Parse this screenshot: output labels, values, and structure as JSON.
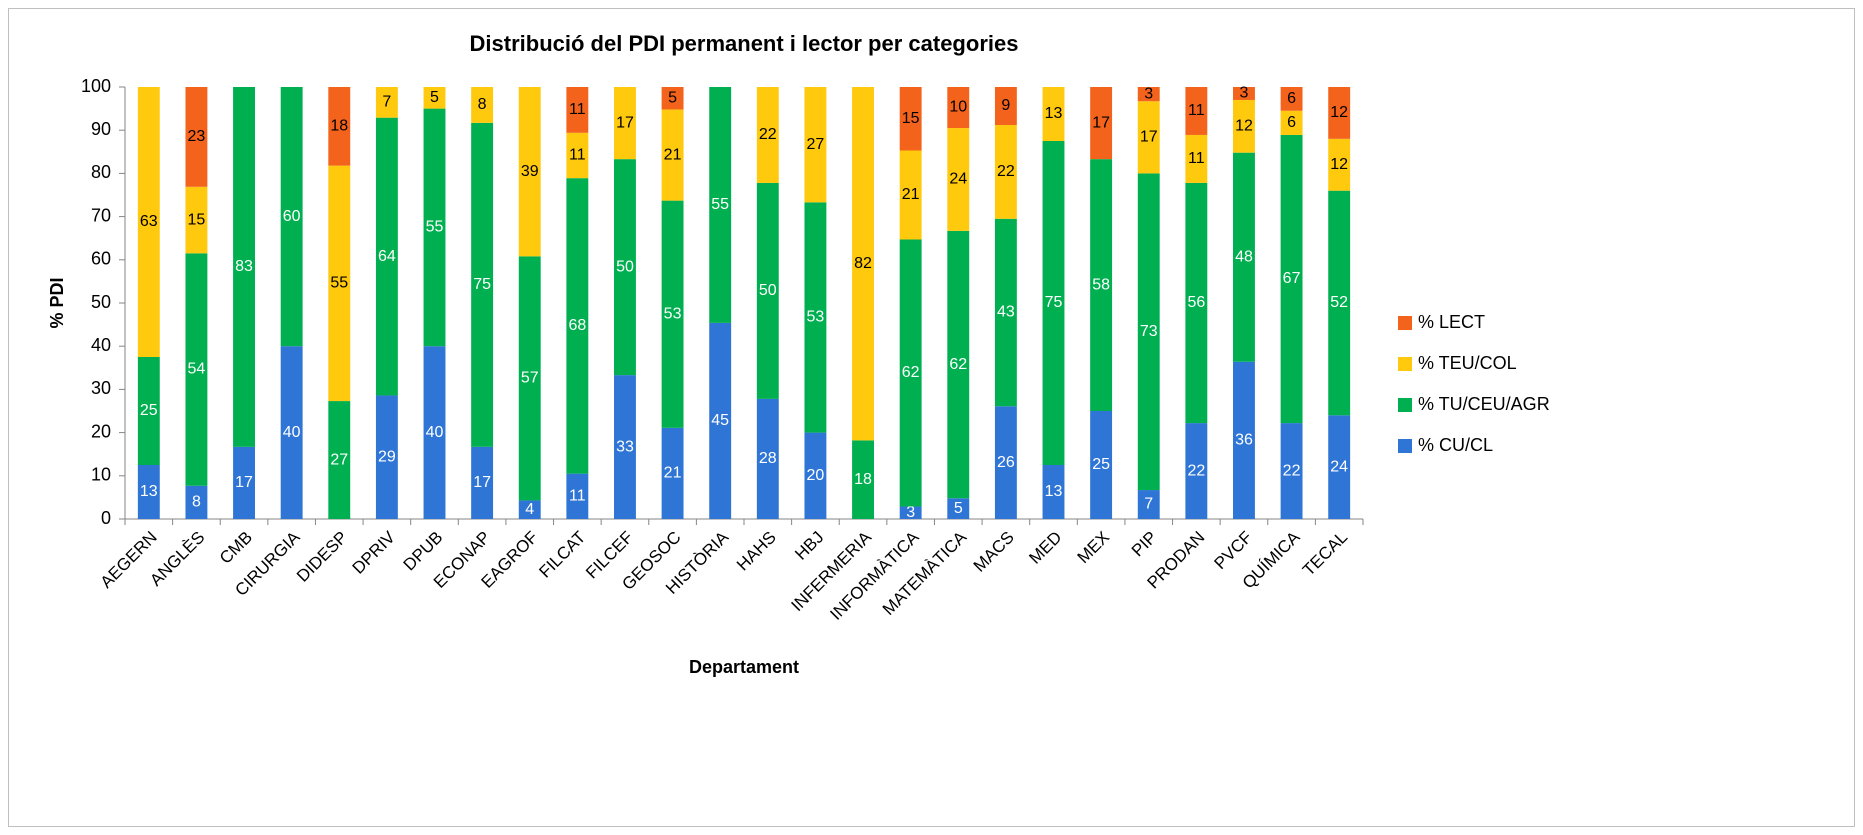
{
  "chart_data": {
    "type": "stacked_bar",
    "title": "Distribució del PDI permanent i lector per categories",
    "x_label": "Departament",
    "y_label": "% PDI",
    "categories": [
      "AEGERN",
      "ANGLÈS",
      "CMB",
      "CIRURGIA",
      "DIDESP",
      "DPRIV",
      "DPUB",
      "ECONAP",
      "EAGROF",
      "FILCAT",
      "FILCEF",
      "GEOSOC",
      "HISTÒRIA",
      "HAHS",
      "HBJ",
      "INFERMERIA",
      "INFORMÀTICA",
      "MATEMÀTICA",
      "MACS",
      "MED",
      "MEX",
      "PIP",
      "PRODAN",
      "PVCF",
      "QUÍMICA",
      "TECAL"
    ],
    "series": [
      {
        "name": "% CU/CL",
        "color": "#2e75d6",
        "values": [
          12.5,
          7.7,
          16.7,
          40,
          0,
          28.6,
          40,
          16.7,
          4.3,
          10.5,
          33.3,
          21.1,
          45.4,
          27.8,
          20,
          0,
          2.9,
          4.8,
          26.1,
          12.5,
          25,
          6.7,
          22.2,
          36.4,
          22.2,
          24
        ],
        "value_labels": [
          "13",
          "8",
          "17",
          "40",
          null,
          "29",
          "40",
          "17",
          "4",
          "11",
          "33",
          "21",
          "45",
          "28",
          "20",
          null,
          "3",
          "5",
          "26",
          "13",
          "25",
          "7",
          "22",
          "36",
          "22",
          "24"
        ]
      },
      {
        "name": "% TU/CEU/AGR",
        "color": "#00b050",
        "values": [
          25,
          53.8,
          83.3,
          60,
          27.3,
          64.3,
          55,
          75,
          56.5,
          68.4,
          50,
          52.6,
          54.6,
          50,
          53.3,
          18.2,
          61.8,
          61.9,
          43.4,
          75,
          58.3,
          73.3,
          55.6,
          48.4,
          66.7,
          52
        ],
        "value_labels": [
          "25",
          "54",
          "83",
          "60",
          "27",
          "64",
          "55",
          "75",
          "57",
          "68",
          "50",
          "53",
          "55",
          "50",
          "53",
          "18",
          "62",
          "62",
          "43",
          "75",
          "58",
          "73",
          "56",
          "48",
          "67",
          "52"
        ]
      },
      {
        "name": "% TEU/COL",
        "color": "#ffc90e",
        "values": [
          62.5,
          15.4,
          0,
          0,
          54.5,
          7.1,
          5,
          8.3,
          39.2,
          10.5,
          16.7,
          21.1,
          0,
          22.2,
          26.7,
          81.8,
          20.6,
          23.8,
          21.7,
          12.5,
          0,
          16.7,
          11.1,
          12.2,
          5.6,
          12
        ],
        "value_labels": [
          "63",
          "15",
          null,
          null,
          "55",
          "7",
          "5",
          "8",
          "39",
          "11",
          "17",
          "21",
          null,
          "22",
          "27",
          "82",
          "21",
          "24",
          "22",
          "13",
          null,
          "17",
          "11",
          "12",
          "6",
          "12"
        ]
      },
      {
        "name": "% LECT",
        "color": "#f4631c",
        "values": [
          0,
          23.1,
          0,
          0,
          18.2,
          0,
          0,
          0,
          0,
          10.6,
          0,
          5.2,
          0,
          0,
          0,
          0,
          14.7,
          9.5,
          8.8,
          0,
          16.7,
          3.3,
          11.1,
          3,
          5.5,
          12
        ],
        "value_labels": [
          null,
          "23",
          null,
          null,
          "18",
          null,
          null,
          null,
          null,
          "11",
          null,
          "5",
          null,
          null,
          null,
          null,
          "15",
          "10",
          "9",
          null,
          "17",
          "3",
          "11",
          "3",
          "6",
          "12"
        ]
      }
    ],
    "label_colors": [
      "#ffffff",
      "#ffffff",
      "#000000",
      "#000000"
    ],
    "ylim": [
      0,
      100
    ],
    "yticks": [
      0,
      10,
      20,
      30,
      40,
      50,
      60,
      70,
      80,
      90,
      100
    ],
    "grid": false,
    "legend": "right"
  }
}
